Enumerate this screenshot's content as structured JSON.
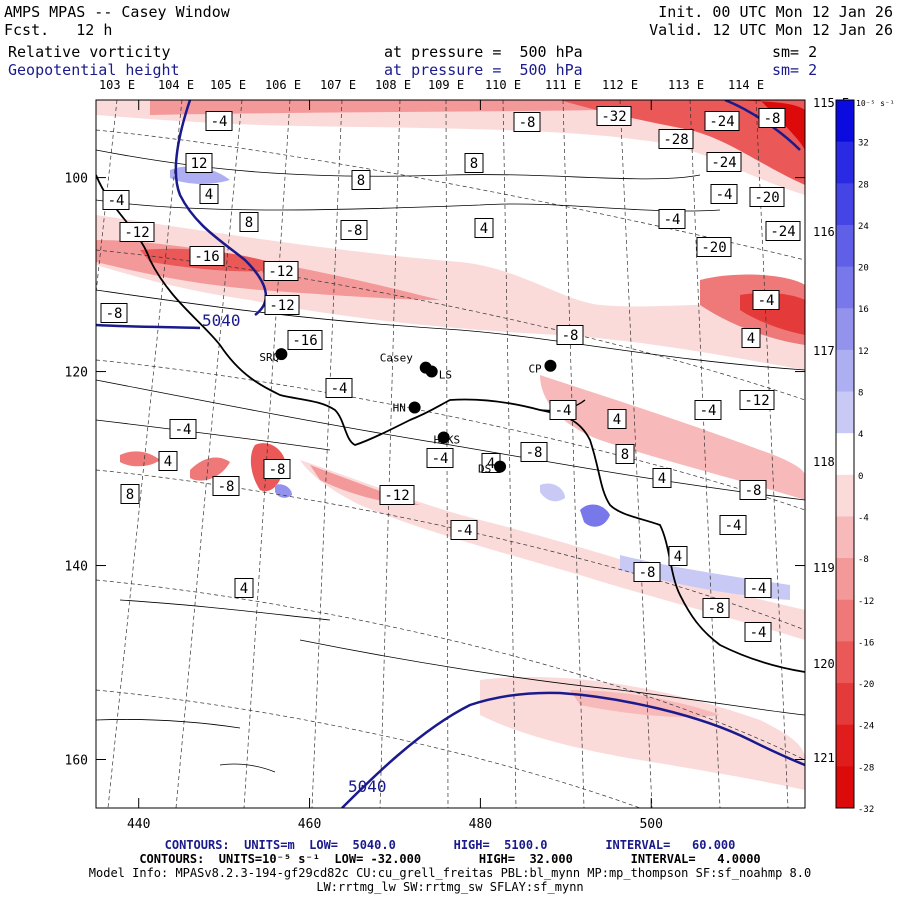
{
  "header": {
    "model_title": "AMPS MPAS -- Casey Window",
    "forecast_label": "Fcst.",
    "forecast_hours": "12 h",
    "init_text": "Init. 00 UTC Mon 12 Jan 26",
    "valid_text": "Valid. 12 UTC Mon 12 Jan 26",
    "field1_name": "Relative vorticity",
    "field1_level": "at pressure =  500 hPa",
    "field1_smooth": "sm= 2",
    "field2_name": "Geopotential height",
    "field2_level": "at pressure =  500 hPa",
    "field2_smooth": "sm= 2"
  },
  "colorbar": {
    "units_label": "10⁻⁵ s⁻¹",
    "levels": [
      "32",
      "28",
      "24",
      "20",
      "16",
      "12",
      "8",
      "4",
      "0",
      "-4",
      "-8",
      "-12",
      "-16",
      "-20",
      "-24",
      "-28",
      "-32"
    ],
    "colors": [
      "#0b0be0",
      "#2a2ae4",
      "#4545e6",
      "#5f5fe8",
      "#7878ea",
      "#9393ee",
      "#aeaef2",
      "#c9c9f6",
      "#ffffff",
      "#fbdada",
      "#f7b9b9",
      "#f39999",
      "#ef7878",
      "#ea5858",
      "#e53a3a",
      "#e01c1c",
      "#dc0a0a"
    ]
  },
  "chart_data": {
    "type": "map-contour",
    "title": "Relative vorticity and Geopotential height at 500 hPa",
    "x_axis": {
      "ticks": [
        "440",
        "460",
        "480",
        "500"
      ],
      "range": [
        435,
        518
      ]
    },
    "y_axis": {
      "ticks": [
        "100",
        "120",
        "140",
        "160"
      ],
      "range": [
        92,
        165
      ]
    },
    "longitude_labels_top": [
      "103 E",
      "104 E",
      "105 E",
      "106 E",
      "107 E",
      "108 E",
      "109 E",
      "110 E",
      "111 E",
      "112 E",
      "113 E",
      "114 E"
    ],
    "longitude_labels_right": [
      "115 E",
      "116 E",
      "117 E",
      "118 E",
      "119 E",
      "120 E",
      "121 E"
    ],
    "stations": [
      {
        "name": "Casey",
        "x": 473.6,
        "y": 119.6
      },
      {
        "name": "SRQ",
        "x": 456.7,
        "y": 118.2
      },
      {
        "name": "LS",
        "x": 474.3,
        "y": 120.0
      },
      {
        "name": "HN",
        "x": 472.3,
        "y": 123.7
      },
      {
        "name": "HRKS",
        "x": 475.7,
        "y": 126.8
      },
      {
        "name": "DS",
        "x": 482.3,
        "y": 129.8
      },
      {
        "name": "CP",
        "x": 488.2,
        "y": 119.4
      }
    ],
    "height_contour_labels": [
      "5040",
      "5040"
    ],
    "vorticity_labels": [
      "-4",
      "-8",
      "-32",
      "-24",
      "-8",
      "12",
      "8",
      "-28",
      "-24",
      "4",
      "8",
      "-4",
      "-4",
      "-20",
      "8",
      "-4",
      "-8",
      "4",
      "-12",
      "-24",
      "-16",
      "-12",
      "-20",
      "-12",
      "-4",
      "-8",
      "-16",
      "4",
      "-8",
      "-4",
      "-4",
      "-12",
      "4",
      "-4",
      "-4",
      "-8",
      "8",
      "-4",
      "4",
      "4",
      "-8",
      "-12",
      "4",
      "-8",
      "8",
      "-8",
      "-4",
      "-4",
      "4",
      "-8",
      "-4",
      "4",
      "-8",
      "-4"
    ],
    "height_contours": {
      "units": "m",
      "low": "5040.0",
      "high": "5100.0",
      "interval": "60.000"
    },
    "vorticity_contours": {
      "units": "10⁻⁵ s⁻¹",
      "low": "-32.000",
      "high": "32.000",
      "interval": "4.0000"
    }
  },
  "footer": {
    "height_line": "CONTOURS:  UNITS=m  LOW=  5040.0        HIGH=  5100.0        INTERVAL=   60.000",
    "vort_line": "CONTOURS:  UNITS=10⁻⁵ s⁻¹  LOW= -32.000        HIGH=  32.000        INTERVAL=   4.0000",
    "model_info": "Model Info: MPASv8.2.3-194-gf29cd82c CU:cu_grell_freitas PBL:bl_mynn MP:mp_thompson SF:sf_noahmp 8.0",
    "model_info2": "LW:rrtmg_lw SW:rrtmg_sw SFLAY:sf_mynn"
  }
}
